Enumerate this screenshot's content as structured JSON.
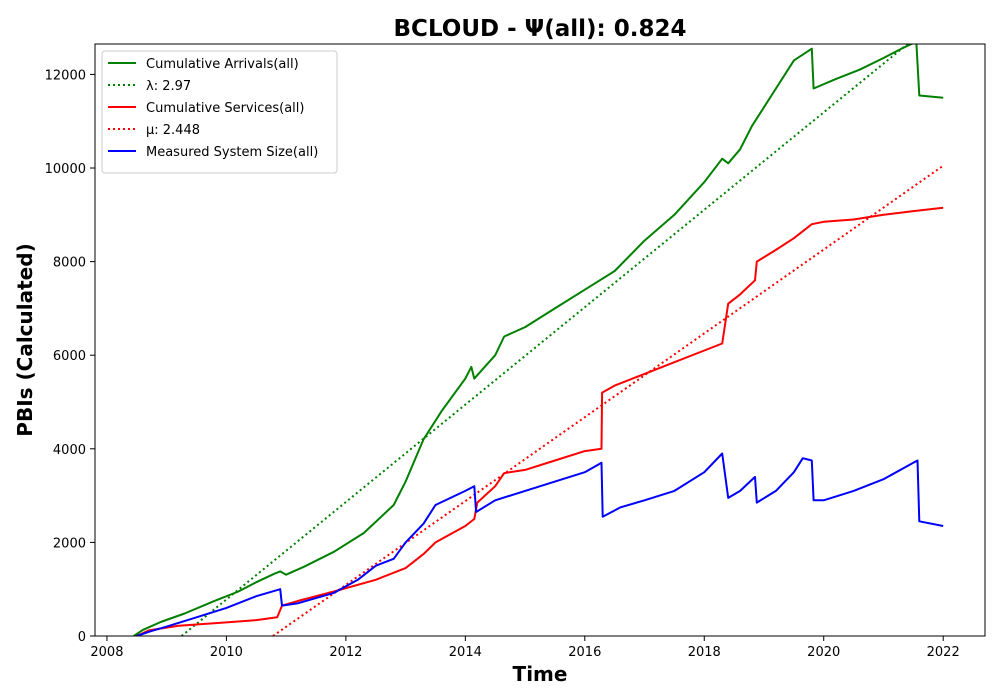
{
  "chart_data": {
    "type": "line",
    "title": "BCLOUD -  Ψ(all): 0.824",
    "xlabel": "Time",
    "ylabel": "PBIs (Calculated)",
    "xlim": [
      2007.8,
      2022.7
    ],
    "ylim": [
      0,
      12650
    ],
    "xticks": [
      2008,
      2010,
      2012,
      2014,
      2016,
      2018,
      2020,
      2022
    ],
    "yticks": [
      0,
      2000,
      4000,
      6000,
      8000,
      10000,
      12000
    ],
    "grid": false,
    "legend_position": "upper-left",
    "series": [
      {
        "name": "Cumulative Arrivals(all)",
        "legend_label": "Cumulative Arrivals(all)",
        "color": "#008000",
        "style": "solid",
        "points": [
          [
            2008.45,
            0
          ],
          [
            2008.6,
            130
          ],
          [
            2008.9,
            300
          ],
          [
            2009.3,
            480
          ],
          [
            2009.8,
            750
          ],
          [
            2010.2,
            950
          ],
          [
            2010.5,
            1150
          ],
          [
            2010.8,
            1330
          ],
          [
            2010.9,
            1380
          ],
          [
            2011.0,
            1310
          ],
          [
            2011.3,
            1480
          ],
          [
            2011.8,
            1800
          ],
          [
            2012.3,
            2200
          ],
          [
            2012.8,
            2800
          ],
          [
            2013.0,
            3300
          ],
          [
            2013.3,
            4200
          ],
          [
            2013.6,
            4800
          ],
          [
            2014.0,
            5500
          ],
          [
            2014.1,
            5750
          ],
          [
            2014.15,
            5500
          ],
          [
            2014.5,
            6000
          ],
          [
            2014.65,
            6400
          ],
          [
            2015.0,
            6600
          ],
          [
            2015.5,
            7000
          ],
          [
            2016.0,
            7400
          ],
          [
            2016.5,
            7800
          ],
          [
            2017.0,
            8450
          ],
          [
            2017.5,
            9000
          ],
          [
            2018.0,
            9700
          ],
          [
            2018.3,
            10200
          ],
          [
            2018.4,
            10100
          ],
          [
            2018.6,
            10400
          ],
          [
            2018.8,
            10900
          ],
          [
            2019.0,
            11300
          ],
          [
            2019.5,
            12300
          ],
          [
            2019.8,
            12550
          ],
          [
            2019.83,
            11700
          ],
          [
            2020.2,
            11900
          ],
          [
            2020.6,
            12100
          ],
          [
            2021.0,
            12350
          ],
          [
            2021.3,
            12550
          ],
          [
            2021.55,
            12700
          ],
          [
            2021.6,
            11550
          ],
          [
            2022.0,
            11500
          ]
        ]
      },
      {
        "name": "lambda",
        "legend_label": "λ: 2.97",
        "color": "#008000",
        "style": "dotted",
        "points": [
          [
            2009.25,
            0
          ],
          [
            2021.5,
            12750
          ]
        ]
      },
      {
        "name": "Cumulative Services(all)",
        "legend_label": "Cumulative Services(all)",
        "color": "#ff0000",
        "style": "solid",
        "points": [
          [
            2008.5,
            0
          ],
          [
            2008.7,
            120
          ],
          [
            2009.2,
            220
          ],
          [
            2010.0,
            290
          ],
          [
            2010.5,
            340
          ],
          [
            2010.85,
            400
          ],
          [
            2010.93,
            650
          ],
          [
            2011.2,
            750
          ],
          [
            2011.8,
            950
          ],
          [
            2012.5,
            1200
          ],
          [
            2013.0,
            1450
          ],
          [
            2013.3,
            1750
          ],
          [
            2013.5,
            2000
          ],
          [
            2014.0,
            2350
          ],
          [
            2014.15,
            2500
          ],
          [
            2014.2,
            2850
          ],
          [
            2014.5,
            3200
          ],
          [
            2014.65,
            3480
          ],
          [
            2015.0,
            3550
          ],
          [
            2015.5,
            3750
          ],
          [
            2016.0,
            3950
          ],
          [
            2016.28,
            4000
          ],
          [
            2016.29,
            5200
          ],
          [
            2016.5,
            5350
          ],
          [
            2017.0,
            5600
          ],
          [
            2017.5,
            5850
          ],
          [
            2018.0,
            6100
          ],
          [
            2018.3,
            6250
          ],
          [
            2018.4,
            7100
          ],
          [
            2018.6,
            7300
          ],
          [
            2018.85,
            7600
          ],
          [
            2018.88,
            8000
          ],
          [
            2019.2,
            8250
          ],
          [
            2019.5,
            8500
          ],
          [
            2019.8,
            8800
          ],
          [
            2020.0,
            8850
          ],
          [
            2020.5,
            8900
          ],
          [
            2021.0,
            9000
          ],
          [
            2021.5,
            9080
          ],
          [
            2022.0,
            9150
          ]
        ]
      },
      {
        "name": "mu",
        "legend_label": "μ: 2.448",
        "color": "#ff0000",
        "style": "dotted",
        "points": [
          [
            2010.78,
            0
          ],
          [
            2022.0,
            10050
          ]
        ]
      },
      {
        "name": "Measured System Size(all)",
        "legend_label": "Measured System Size(all)",
        "color": "#0000ff",
        "style": "solid",
        "points": [
          [
            2008.5,
            0
          ],
          [
            2008.7,
            90
          ],
          [
            2009.0,
            200
          ],
          [
            2009.5,
            400
          ],
          [
            2010.0,
            600
          ],
          [
            2010.5,
            850
          ],
          [
            2010.9,
            1000
          ],
          [
            2010.93,
            650
          ],
          [
            2011.2,
            700
          ],
          [
            2011.8,
            920
          ],
          [
            2012.2,
            1200
          ],
          [
            2012.5,
            1500
          ],
          [
            2012.8,
            1650
          ],
          [
            2013.0,
            2000
          ],
          [
            2013.3,
            2400
          ],
          [
            2013.5,
            2800
          ],
          [
            2014.0,
            3100
          ],
          [
            2014.15,
            3200
          ],
          [
            2014.18,
            2650
          ],
          [
            2014.5,
            2900
          ],
          [
            2015.0,
            3100
          ],
          [
            2015.5,
            3300
          ],
          [
            2016.0,
            3500
          ],
          [
            2016.28,
            3700
          ],
          [
            2016.3,
            2550
          ],
          [
            2016.6,
            2750
          ],
          [
            2017.0,
            2900
          ],
          [
            2017.5,
            3100
          ],
          [
            2018.0,
            3500
          ],
          [
            2018.3,
            3900
          ],
          [
            2018.4,
            2950
          ],
          [
            2018.6,
            3100
          ],
          [
            2018.85,
            3400
          ],
          [
            2018.88,
            2850
          ],
          [
            2019.2,
            3100
          ],
          [
            2019.5,
            3500
          ],
          [
            2019.65,
            3800
          ],
          [
            2019.8,
            3750
          ],
          [
            2019.83,
            2900
          ],
          [
            2020.0,
            2900
          ],
          [
            2020.5,
            3100
          ],
          [
            2021.0,
            3350
          ],
          [
            2021.5,
            3700
          ],
          [
            2021.57,
            3750
          ],
          [
            2021.6,
            2450
          ],
          [
            2022.0,
            2350
          ]
        ]
      }
    ]
  }
}
